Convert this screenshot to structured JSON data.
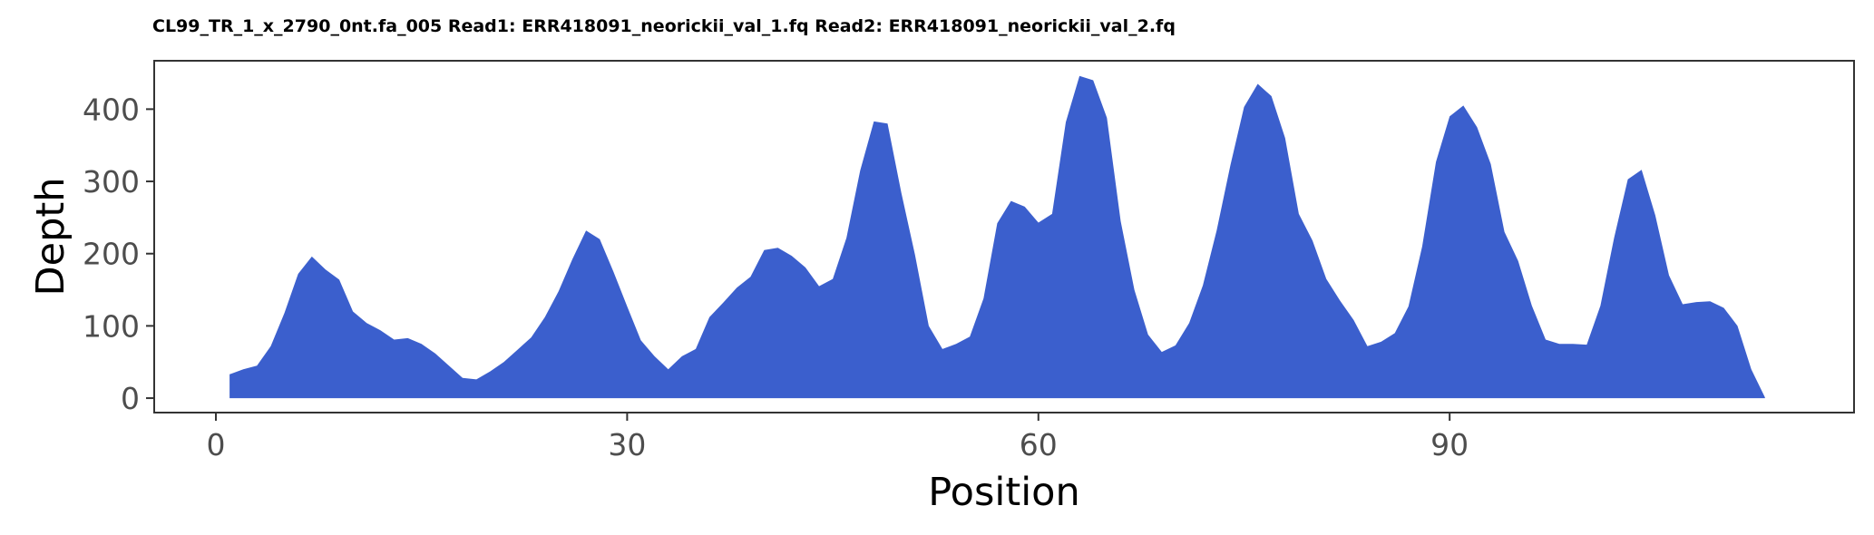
{
  "chart_data": {
    "type": "area",
    "title": "CL99_TR_1_x_2790_0nt.fa_005 Read1: ERR418091_neorickii_val_1.fq Read2: ERR418091_neorickii_val_2.fq",
    "xlabel": "Position",
    "ylabel": "Depth",
    "xlim": [
      -4.5,
      119.5
    ],
    "ylim": [
      -20,
      467
    ],
    "x_ticks": [
      0,
      30,
      60,
      90
    ],
    "x_tick_labels": [
      "0",
      "30",
      "60",
      "90"
    ],
    "y_ticks": [
      0,
      100,
      200,
      300,
      400
    ],
    "y_tick_labels": [
      "0",
      "100",
      "200",
      "300",
      "400"
    ],
    "fill_color": "#3b5fcd",
    "grid": false,
    "x": [
      1,
      2,
      3,
      4,
      5,
      6,
      7,
      8,
      9,
      10,
      11,
      12,
      13,
      14,
      15,
      16,
      17,
      18,
      19,
      20,
      21,
      22,
      23,
      24,
      25,
      26,
      27,
      28,
      29,
      30,
      31,
      32,
      33,
      34,
      35,
      36,
      37,
      38,
      39,
      40,
      41,
      42,
      43,
      44,
      45,
      46,
      47,
      48,
      49,
      50,
      51,
      52,
      53,
      54,
      55,
      56,
      57,
      58,
      59,
      60,
      61,
      62,
      63,
      64,
      65,
      66,
      67,
      68,
      69,
      70,
      71,
      72,
      73,
      74,
      75,
      76,
      77,
      78,
      79,
      80,
      81,
      82,
      83,
      84,
      85,
      86,
      87,
      88,
      89,
      90,
      91,
      92,
      93,
      94,
      95,
      96,
      97,
      98,
      99,
      100,
      101,
      102,
      103,
      104,
      105,
      106,
      107,
      108,
      109,
      110,
      111,
      112,
      113
    ],
    "y": [
      33,
      40,
      45,
      72,
      118,
      172,
      196,
      178,
      164,
      120,
      104,
      94,
      81,
      83,
      75,
      62,
      45,
      28,
      26,
      37,
      50,
      67,
      84,
      112,
      148,
      192,
      232,
      220,
      175,
      127,
      80,
      58,
      40,
      58,
      68,
      112,
      132,
      153,
      168,
      205,
      208,
      197,
      181,
      155,
      165,
      222,
      315,
      383,
      380,
      284,
      198,
      100,
      68,
      75,
      85,
      138,
      242,
      273,
      265,
      243,
      255,
      382,
      446,
      440,
      388,
      245,
      150,
      88,
      64,
      73,
      104,
      156,
      232,
      322,
      403,
      435,
      418,
      360,
      255,
      218,
      165,
      135,
      108,
      72,
      78,
      90,
      127,
      210,
      327,
      390,
      405,
      375,
      324,
      230,
      190,
      128,
      81,
      75,
      75,
      74,
      128,
      222,
      303,
      316,
      253,
      170,
      130,
      133,
      134,
      125,
      100,
      40,
      1
    ]
  }
}
